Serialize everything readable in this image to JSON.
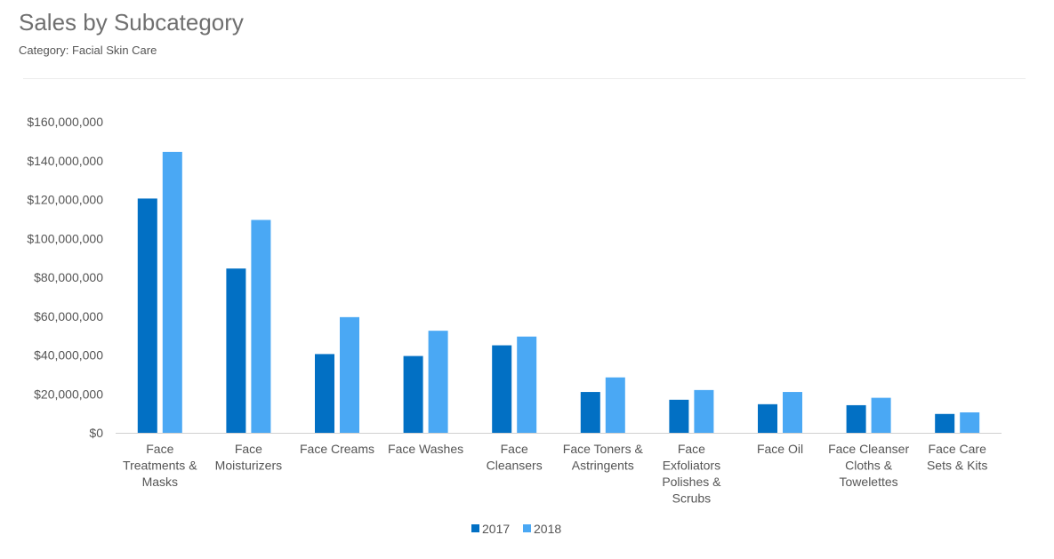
{
  "header": {
    "title": "Sales by Subcategory",
    "subtitle": "Category: Facial Skin Care"
  },
  "colors": {
    "series_2017": "#0270c4",
    "series_2018": "#4aa8f4",
    "axis": "#d0d0d0",
    "text": "#555555"
  },
  "chart_data": {
    "type": "bar",
    "title": "Sales by Subcategory",
    "subtitle": "Category: Facial Skin Care",
    "xlabel": "",
    "ylabel": "",
    "ylim": [
      0,
      160000000
    ],
    "yticks": [
      0,
      20000000,
      40000000,
      60000000,
      80000000,
      100000000,
      120000000,
      140000000,
      160000000
    ],
    "ytick_labels": [
      "$0",
      "$20,000,000",
      "$40,000,000",
      "$60,000,000",
      "$80,000,000",
      "$100,000,000",
      "$120,000,000",
      "$140,000,000",
      "$160,000,000"
    ],
    "grid": false,
    "legend_position": "bottom",
    "categories": [
      "Face Treatments & Masks",
      "Face Moisturizers",
      "Face Creams",
      "Face Washes",
      "Face Cleansers",
      "Face Toners & Astringents",
      "Face Exfoliators Polishes & Scrubs",
      "Face Oil",
      "Face Cleanser Cloths & Towelettes",
      "Face Care Sets & Kits"
    ],
    "category_lines": [
      [
        "Face",
        "Treatments &",
        "Masks"
      ],
      [
        "Face",
        "Moisturizers"
      ],
      [
        "Face Creams"
      ],
      [
        "Face Washes"
      ],
      [
        "Face",
        "Cleansers"
      ],
      [
        "Face Toners &",
        "Astringents"
      ],
      [
        "Face",
        "Exfoliators",
        "Polishes &",
        "Scrubs"
      ],
      [
        "Face Oil"
      ],
      [
        "Face Cleanser",
        "Cloths &",
        "Towelettes"
      ],
      [
        "Face Care",
        "Sets & Kits"
      ]
    ],
    "series": [
      {
        "name": "2017",
        "color": "#0270c4",
        "values": [
          120500000,
          84500000,
          40500000,
          39500000,
          45000000,
          21000000,
          17000000,
          14700000,
          14200000,
          9700000
        ]
      },
      {
        "name": "2018",
        "color": "#4aa8f4",
        "values": [
          144500000,
          109500000,
          59500000,
          52500000,
          49500000,
          28500000,
          22000000,
          21000000,
          18000000,
          10500000
        ]
      }
    ]
  }
}
